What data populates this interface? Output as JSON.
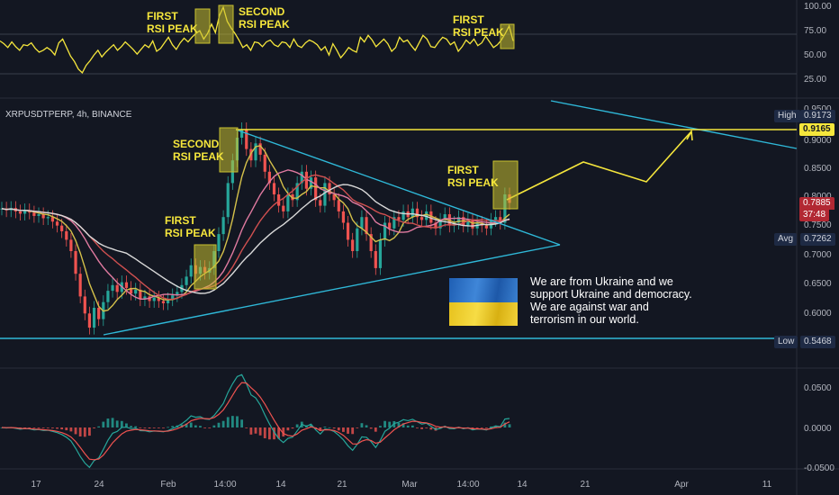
{
  "symbol_label": "XRPUSDTPERP, 4h, BINANCE",
  "message": {
    "line1": "We are from Ukraine and we",
    "line2": "support Ukraine and democracy.",
    "line3": "We are against war and",
    "line4": "terrorism in our world."
  },
  "annotations": {
    "rsi_first_1": [
      "FIRST",
      "RSI PEAK"
    ],
    "rsi_second": [
      "SECOND",
      "RSI PEAK"
    ],
    "rsi_first_2": [
      "FIRST",
      "RSI PEAK"
    ],
    "price_second": [
      "SECOND",
      "RSI PEAK"
    ],
    "price_first_1": [
      "FIRST",
      "RSI PEAK"
    ],
    "price_first_2": [
      "FIRST",
      "RSI PEAK"
    ]
  },
  "badges": {
    "high_label": "High",
    "high_value": "0.9173",
    "target_value": "0.9165",
    "last_price": "0.7885",
    "countdown": "37:48",
    "avg_label": "Avg",
    "avg_value": "0.7262",
    "low_label": "Low",
    "low_value": "0.5468"
  },
  "colors": {
    "background": "#131722",
    "annotation": "#f5e63c",
    "trendline": "#2fb8d8",
    "price_up": "#26a69a",
    "price_down": "#ef5350",
    "ma_yellow": "#d4c04a",
    "ma_white": "#d9d9d9",
    "ma_pink": "#e07aa0",
    "ma_red": "#d05050"
  },
  "chart_data": [
    {
      "type": "line",
      "name": "rsi",
      "y_ticks": [
        "100.00",
        "75.00",
        "50.00",
        "25.00"
      ],
      "ylim": [
        0,
        100
      ],
      "series": [
        {
          "values": [
            62,
            59,
            55,
            61,
            56,
            52,
            58,
            57,
            60,
            54,
            50,
            52,
            55,
            52,
            47,
            60,
            64,
            55,
            46,
            40,
            32,
            28,
            36,
            41,
            47,
            52,
            45,
            50,
            54,
            58,
            52,
            56,
            61,
            57,
            53,
            48,
            53,
            58,
            55,
            62,
            51,
            54,
            60,
            66,
            58,
            53,
            60,
            65,
            61,
            66,
            70,
            73,
            64,
            70,
            80,
            71,
            89,
            98,
            83,
            76,
            70,
            63,
            55,
            58,
            52,
            61,
            60,
            56,
            61,
            63,
            58,
            56,
            61,
            60,
            55,
            64,
            57,
            55,
            60,
            63,
            61,
            58,
            52,
            56,
            47,
            59,
            52,
            44,
            49,
            55,
            52,
            50,
            66,
            61,
            68,
            63,
            56,
            60,
            64,
            59,
            51,
            55,
            66,
            61,
            63,
            57,
            52,
            60,
            68,
            64,
            56,
            55,
            61,
            66,
            64,
            58,
            61,
            51,
            56,
            63,
            59,
            64,
            57,
            60,
            67,
            61,
            55,
            58,
            63,
            70,
            78,
            62
          ]
        }
      ]
    },
    {
      "type": "line",
      "name": "price",
      "x_tick_labels": [
        "17",
        "24",
        "Feb",
        "14:00",
        "14",
        "21",
        "Mar",
        "14:00",
        "14",
        "21",
        "Apr",
        "11"
      ],
      "y_ticks": [
        "0.9500",
        "0.9000",
        "0.8500",
        "0.8000",
        "0.7500",
        "0.7000",
        "0.6500",
        "0.6000"
      ],
      "ylim": [
        0.5468,
        0.9173
      ],
      "series": [
        {
          "values": [
            0.775,
            0.772,
            0.776,
            0.77,
            0.766,
            0.772,
            0.768,
            0.762,
            0.765,
            0.758,
            0.76,
            0.752,
            0.745,
            0.735,
            0.72,
            0.7,
            0.66,
            0.62,
            0.59,
            0.565,
            0.6,
            0.58,
            0.61,
            0.63,
            0.64,
            0.628,
            0.645,
            0.635,
            0.625,
            0.632,
            0.615,
            0.62,
            0.612,
            0.618,
            0.612,
            0.608,
            0.615,
            0.622,
            0.628,
            0.64,
            0.655,
            0.675,
            0.66,
            0.672,
            0.662,
            0.67,
            0.7,
            0.73,
            0.76,
            0.82,
            0.86,
            0.9,
            0.915,
            0.88,
            0.86,
            0.89,
            0.87,
            0.84,
            0.82,
            0.8,
            0.78,
            0.77,
            0.8,
            0.79,
            0.82,
            0.84,
            0.81,
            0.83,
            0.79,
            0.78,
            0.82,
            0.8,
            0.79,
            0.77,
            0.75,
            0.72,
            0.7,
            0.74,
            0.76,
            0.73,
            0.7,
            0.67,
            0.72,
            0.75,
            0.74,
            0.76,
            0.755,
            0.77,
            0.76,
            0.775,
            0.76,
            0.755,
            0.77,
            0.75,
            0.74,
            0.755,
            0.765,
            0.745,
            0.75,
            0.76,
            0.745,
            0.755,
            0.74,
            0.75,
            0.745,
            0.74,
            0.755,
            0.76,
            0.75,
            0.8,
            0.785
          ]
        }
      ]
    },
    {
      "type": "bar",
      "name": "macd",
      "y_ticks": [
        "0.0500",
        "0.0000",
        "-0.0500"
      ],
      "ylim": [
        -0.05,
        0.05
      ]
    }
  ]
}
